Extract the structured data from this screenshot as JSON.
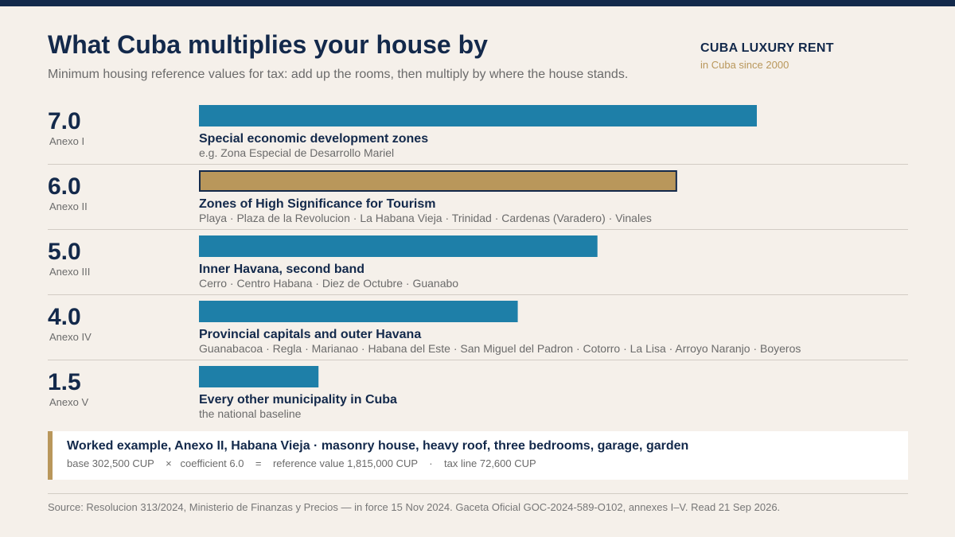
{
  "header": {
    "title": "What Cuba multiplies your house by",
    "subtitle": "Minimum housing reference values for tax: add up the rooms, then multiply by where the house stands.",
    "brand": "CUBA LUXURY RENT",
    "brand_tagline": "in Cuba since 2000"
  },
  "colors": {
    "bar": "#1e7fa8",
    "highlight": "#b9975b",
    "highlight_border": "#13294b",
    "text": "#13294b"
  },
  "chart_data": {
    "type": "bar",
    "orientation": "horizontal",
    "xlim": [
      0,
      7
    ],
    "highlighted": "Anexo II",
    "rows": [
      {
        "value": 7.0,
        "value_label": "7.0",
        "annex": "Anexo I",
        "label": "Special economic development zones",
        "places": "e.g. Zona Especial de Desarrollo Mariel"
      },
      {
        "value": 6.0,
        "value_label": "6.0",
        "annex": "Anexo II",
        "label": "Zones of High Significance for Tourism",
        "places": "Playa · Plaza de la Revolucion · La Habana Vieja · Trinidad · Cardenas (Varadero) · Vinales"
      },
      {
        "value": 5.0,
        "value_label": "5.0",
        "annex": "Anexo III",
        "label": "Inner Havana, second band",
        "places": "Cerro · Centro Habana · Diez de Octubre · Guanabo"
      },
      {
        "value": 4.0,
        "value_label": "4.0",
        "annex": "Anexo IV",
        "label": "Provincial capitals and outer Havana",
        "places": "Guanabacoa · Regla · Marianao · Habana del Este · San Miguel del Padron · Cotorro · La Lisa · Arroyo Naranjo · Boyeros"
      },
      {
        "value": 1.5,
        "value_label": "1.5",
        "annex": "Anexo V",
        "label": "Every other municipality in Cuba",
        "places": "the national baseline"
      }
    ]
  },
  "example": {
    "title": "Worked example, Anexo II, Habana Vieja  ·  masonry house, heavy roof, three bedrooms, garage, garden",
    "calc": "base 302,500 CUP    ×   coefficient 6.0    =    reference value 1,815,000 CUP    ·    tax line 72,600 CUP"
  },
  "source": "Source: Resolucion 313/2024, Ministerio de Finanzas y Precios — in force 15 Nov 2024. Gaceta Oficial GOC-2024-589-O102, annexes I–V. Read 21 Sep 2026."
}
